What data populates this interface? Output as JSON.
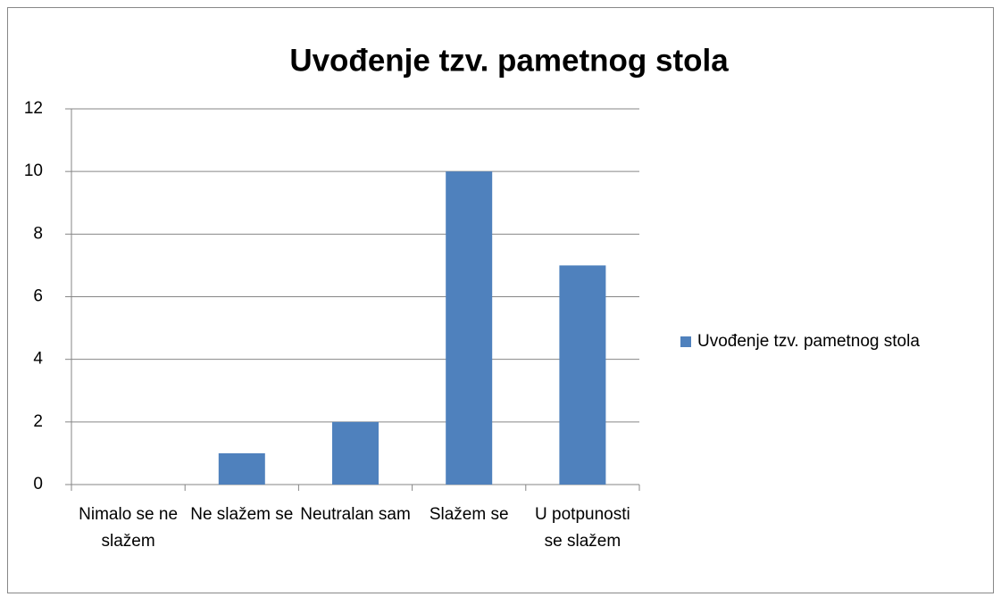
{
  "chart_data": {
    "type": "bar",
    "title": "Uvođenje tzv. pametnog stola",
    "categories": [
      "Nimalo se ne slažem",
      "Ne slažem se",
      "Neutralan sam",
      "Slažem se",
      "U potpunosti se slažem"
    ],
    "series": [
      {
        "name": "Uvođenje tzv. pametnog stola",
        "color": "#4f81bd",
        "values": [
          0,
          1,
          2,
          10,
          7
        ]
      }
    ],
    "ylim": [
      0,
      12
    ],
    "yticks": [
      0,
      2,
      4,
      6,
      8,
      10,
      12
    ],
    "grid": true,
    "legend": "right"
  }
}
